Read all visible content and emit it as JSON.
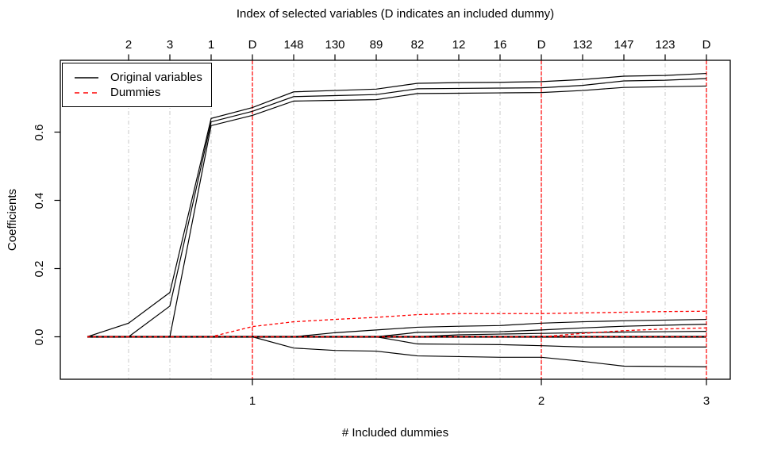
{
  "chart_data": {
    "type": "line",
    "title": "Index of selected variables (D indicates an included dummy)",
    "xlabel": "# Included dummies",
    "ylabel": "Coefficients",
    "legend": [
      {
        "label": "Original variables",
        "style": "solid",
        "color": "#000000"
      },
      {
        "label": "Dummies",
        "style": "dashed",
        "color": "#ff0000"
      }
    ],
    "colors": {
      "original": "#000000",
      "dummy": "#ff0000",
      "grid": "#c8c8c8",
      "axis": "#000000",
      "background": "#ffffff"
    },
    "grid": "vertical dash-dot line at every selection step",
    "legend_position": "top-left",
    "top_axis_labels": [
      "2",
      "3",
      "1",
      "D",
      "148",
      "130",
      "89",
      "82",
      "12",
      "16",
      "D",
      "132",
      "147",
      "123",
      "D"
    ],
    "bottom_ticks": [
      {
        "label": "1",
        "step": 4
      },
      {
        "label": "2",
        "step": 11
      },
      {
        "label": "3",
        "step": 15
      }
    ],
    "dummy_vline_steps": [
      4,
      11,
      15
    ],
    "y_ticks": [
      {
        "label": "0.0",
        "value": 0.0
      },
      {
        "label": "0.2",
        "value": 0.2
      },
      {
        "label": "0.4",
        "value": 0.4
      },
      {
        "label": "0.6",
        "value": 0.6
      }
    ],
    "xlim_steps": [
      0,
      15
    ],
    "ylim": [
      -0.12,
      0.81
    ],
    "series": [
      {
        "name": "original-1",
        "group": "original",
        "color": "#000000",
        "dash": null,
        "width": 1.2,
        "points": [
          [
            0,
            0
          ],
          [
            1,
            0.04
          ],
          [
            2,
            0.13
          ],
          [
            3,
            0.64
          ],
          [
            4,
            0.672
          ],
          [
            5,
            0.718
          ],
          [
            6,
            0.722
          ],
          [
            7,
            0.726
          ],
          [
            8,
            0.743
          ],
          [
            9,
            0.745
          ],
          [
            10,
            0.746
          ],
          [
            11,
            0.748
          ],
          [
            12,
            0.754
          ],
          [
            13,
            0.764
          ],
          [
            14,
            0.766
          ],
          [
            15,
            0.772
          ]
        ]
      },
      {
        "name": "original-2",
        "group": "original",
        "color": "#000000",
        "dash": null,
        "width": 1.2,
        "points": [
          [
            0,
            0
          ],
          [
            1,
            0
          ],
          [
            2,
            0.09
          ],
          [
            3,
            0.63
          ],
          [
            4,
            0.661
          ],
          [
            5,
            0.704
          ],
          [
            6,
            0.707
          ],
          [
            7,
            0.71
          ],
          [
            8,
            0.727
          ],
          [
            9,
            0.728
          ],
          [
            10,
            0.729
          ],
          [
            11,
            0.73
          ],
          [
            12,
            0.737
          ],
          [
            13,
            0.75
          ],
          [
            14,
            0.752
          ],
          [
            15,
            0.757
          ]
        ]
      },
      {
        "name": "original-3",
        "group": "original",
        "color": "#000000",
        "dash": null,
        "width": 1.2,
        "points": [
          [
            0,
            0
          ],
          [
            1,
            0
          ],
          [
            2,
            0
          ],
          [
            3,
            0.619
          ],
          [
            4,
            0.649
          ],
          [
            5,
            0.691
          ],
          [
            6,
            0.693
          ],
          [
            7,
            0.695
          ],
          [
            8,
            0.713
          ],
          [
            9,
            0.714
          ],
          [
            10,
            0.715
          ],
          [
            11,
            0.716
          ],
          [
            12,
            0.722
          ],
          [
            13,
            0.731
          ],
          [
            14,
            0.733
          ],
          [
            15,
            0.735
          ]
        ]
      },
      {
        "name": "original-4",
        "group": "original",
        "color": "#000000",
        "dash": null,
        "width": 1.2,
        "points": [
          [
            0,
            0
          ],
          [
            1,
            0
          ],
          [
            2,
            0
          ],
          [
            3,
            0
          ],
          [
            4,
            0
          ],
          [
            5,
            0
          ],
          [
            6,
            0.012
          ],
          [
            7,
            0.02
          ],
          [
            8,
            0.028
          ],
          [
            9,
            0.031
          ],
          [
            10,
            0.033
          ],
          [
            11,
            0.04
          ],
          [
            12,
            0.044
          ],
          [
            13,
            0.047
          ],
          [
            14,
            0.049
          ],
          [
            15,
            0.051
          ]
        ]
      },
      {
        "name": "original-5",
        "group": "original",
        "color": "#000000",
        "dash": null,
        "width": 1.2,
        "points": [
          [
            0,
            0
          ],
          [
            1,
            0
          ],
          [
            2,
            0
          ],
          [
            3,
            0
          ],
          [
            4,
            0
          ],
          [
            5,
            0
          ],
          [
            6,
            0
          ],
          [
            7,
            0
          ],
          [
            8,
            0.013
          ],
          [
            9,
            0.014
          ],
          [
            10,
            0.015
          ],
          [
            11,
            0.02
          ],
          [
            12,
            0.026
          ],
          [
            13,
            0.031
          ],
          [
            14,
            0.034
          ],
          [
            15,
            0.037
          ]
        ]
      },
      {
        "name": "original-6",
        "group": "original",
        "color": "#000000",
        "dash": null,
        "width": 1.2,
        "points": [
          [
            0,
            0
          ],
          [
            1,
            0
          ],
          [
            2,
            0
          ],
          [
            3,
            0
          ],
          [
            4,
            0
          ],
          [
            5,
            0
          ],
          [
            6,
            0
          ],
          [
            7,
            0
          ],
          [
            8,
            0
          ],
          [
            9,
            0.006
          ],
          [
            10,
            0.008
          ],
          [
            11,
            0.01
          ],
          [
            12,
            0.012
          ],
          [
            13,
            0.014
          ],
          [
            14,
            0.015
          ],
          [
            15,
            0.016
          ]
        ]
      },
      {
        "name": "original-zero-bundle",
        "group": "original",
        "color": "#000000",
        "dash": null,
        "width": 2.2,
        "points": [
          [
            0,
            0
          ],
          [
            15,
            0
          ]
        ]
      },
      {
        "name": "original-7",
        "group": "original",
        "color": "#000000",
        "dash": null,
        "width": 1.2,
        "points": [
          [
            0,
            0
          ],
          [
            1,
            0
          ],
          [
            2,
            0
          ],
          [
            3,
            0
          ],
          [
            4,
            0
          ],
          [
            5,
            -0.033
          ],
          [
            6,
            -0.04
          ],
          [
            7,
            -0.042
          ],
          [
            8,
            -0.056
          ],
          [
            9,
            -0.058
          ],
          [
            10,
            -0.06
          ],
          [
            11,
            -0.06
          ],
          [
            12,
            -0.072
          ],
          [
            13,
            -0.086
          ],
          [
            14,
            -0.087
          ],
          [
            15,
            -0.088
          ]
        ]
      },
      {
        "name": "original-8",
        "group": "original",
        "color": "#000000",
        "dash": null,
        "width": 1.2,
        "points": [
          [
            0,
            0
          ],
          [
            1,
            0
          ],
          [
            2,
            0
          ],
          [
            3,
            0
          ],
          [
            4,
            0
          ],
          [
            5,
            0
          ],
          [
            6,
            0
          ],
          [
            7,
            0
          ],
          [
            8,
            -0.021
          ],
          [
            9,
            -0.022
          ],
          [
            10,
            -0.023
          ],
          [
            11,
            -0.026
          ],
          [
            12,
            -0.03
          ],
          [
            13,
            -0.03
          ],
          [
            14,
            -0.03
          ],
          [
            15,
            -0.03
          ]
        ]
      },
      {
        "name": "dummy-1",
        "group": "dummy",
        "color": "#ff0000",
        "dash": "4 3",
        "width": 1.3,
        "points": [
          [
            0,
            0
          ],
          [
            1,
            0
          ],
          [
            2,
            0
          ],
          [
            3,
            0
          ],
          [
            4,
            0.03
          ],
          [
            5,
            0.044
          ],
          [
            6,
            0.051
          ],
          [
            7,
            0.057
          ],
          [
            8,
            0.065
          ],
          [
            9,
            0.068
          ],
          [
            10,
            0.068
          ],
          [
            11,
            0.068
          ],
          [
            12,
            0.07
          ],
          [
            13,
            0.072
          ],
          [
            14,
            0.074
          ],
          [
            15,
            0.075
          ]
        ]
      },
      {
        "name": "dummy-2",
        "group": "dummy",
        "color": "#ff0000",
        "dash": "4 3",
        "width": 1.3,
        "points": [
          [
            0,
            0
          ],
          [
            1,
            0
          ],
          [
            2,
            0
          ],
          [
            3,
            0
          ],
          [
            4,
            0
          ],
          [
            5,
            0
          ],
          [
            6,
            0
          ],
          [
            7,
            0
          ],
          [
            8,
            0
          ],
          [
            9,
            0
          ],
          [
            10,
            0
          ],
          [
            11,
            0
          ],
          [
            12,
            0.01
          ],
          [
            13,
            0.018
          ],
          [
            14,
            0.023
          ],
          [
            15,
            0.026
          ]
        ]
      },
      {
        "name": "dummy-3-zero",
        "group": "dummy",
        "color": "#ff0000",
        "dash": "4 3",
        "width": 1.3,
        "points": [
          [
            0,
            0
          ],
          [
            15,
            0
          ]
        ]
      }
    ]
  }
}
